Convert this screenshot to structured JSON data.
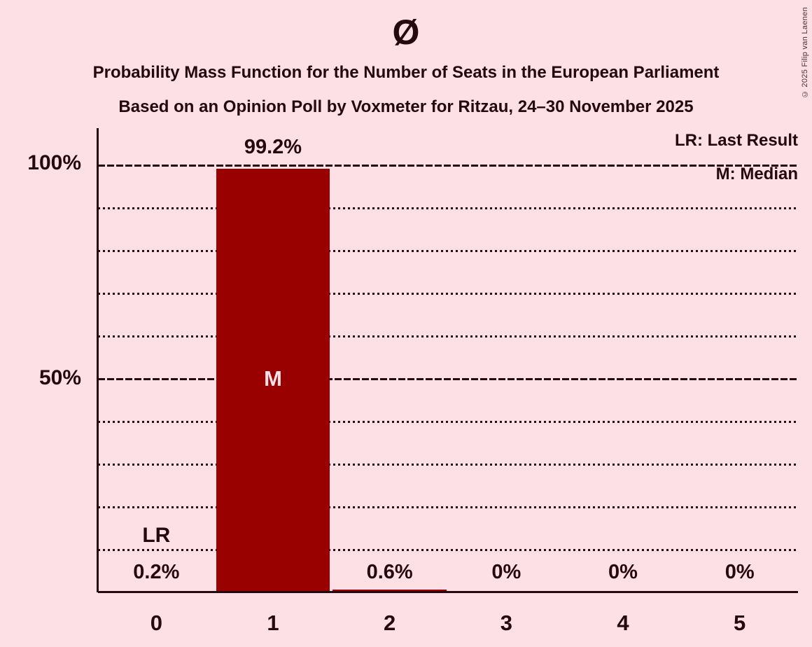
{
  "header": {
    "title": "Ø",
    "subtitle1": "Probability Mass Function for the Number of Seats in the European Parliament",
    "subtitle2": "Based on an Opinion Poll by Voxmeter for Ritzau, 24–30 November 2025"
  },
  "copyright": "© 2025 Filip van Laenen",
  "chart_data": {
    "type": "bar",
    "title": "Ø",
    "subtitles": [
      "Probability Mass Function for the Number of Seats in the European Parliament",
      "Based on an Opinion Poll by Voxmeter for Ritzau, 24–30 November 2025"
    ],
    "categories": [
      "0",
      "1",
      "2",
      "3",
      "4",
      "5"
    ],
    "values": [
      0.2,
      99.2,
      0.6,
      0,
      0,
      0
    ],
    "value_labels": [
      "0.2%",
      "99.2%",
      "0.6%",
      "0%",
      "0%",
      "0%"
    ],
    "ylim": [
      0,
      100
    ],
    "ytick_labels": [
      "100%",
      "50%"
    ],
    "ytick_values": [
      100,
      50
    ],
    "grid": {
      "dotted_lines": [
        10,
        20,
        30,
        40,
        60,
        70,
        80,
        90
      ],
      "dashed_lines": [
        50,
        100
      ]
    },
    "legend": [
      "LR: Last Result",
      "M: Median"
    ],
    "legend_position": "top-right",
    "annotations": [
      {
        "text": "LR",
        "category_index": 0
      },
      {
        "text": "M",
        "category_index": 1,
        "y_percent": 50
      }
    ],
    "colors": {
      "background": "#fce0e6",
      "bar": "#990000",
      "bar_label": "#fbdfe6",
      "text": "#240910"
    }
  }
}
